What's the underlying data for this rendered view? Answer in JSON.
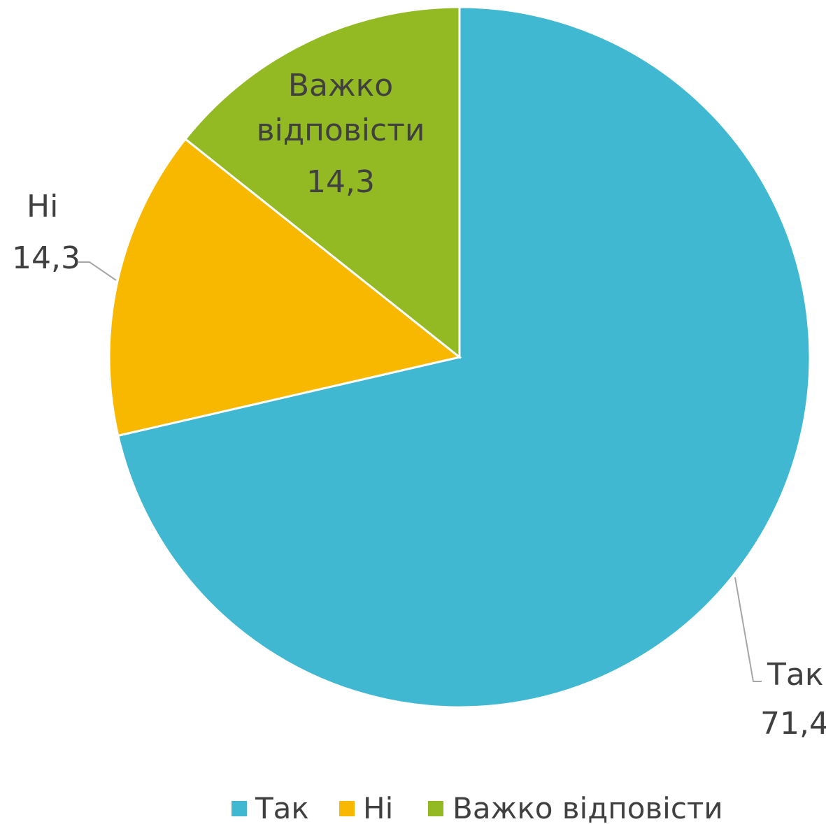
{
  "chart_data": {
    "type": "pie",
    "title": "",
    "categories": [
      "Так",
      "Ні",
      "Важко відповісти"
    ],
    "values": [
      71.4,
      14.3,
      14.3
    ],
    "value_labels": [
      "71,4",
      "14,3",
      "14,3"
    ],
    "colors": [
      "#41B8D2",
      "#F9B800",
      "#93BA23"
    ],
    "start_angle_deg": 0,
    "direction": "clockwise",
    "legend": {
      "position": "bottom",
      "entries": [
        "Так",
        "Ні",
        "Важко відповісти"
      ]
    }
  }
}
